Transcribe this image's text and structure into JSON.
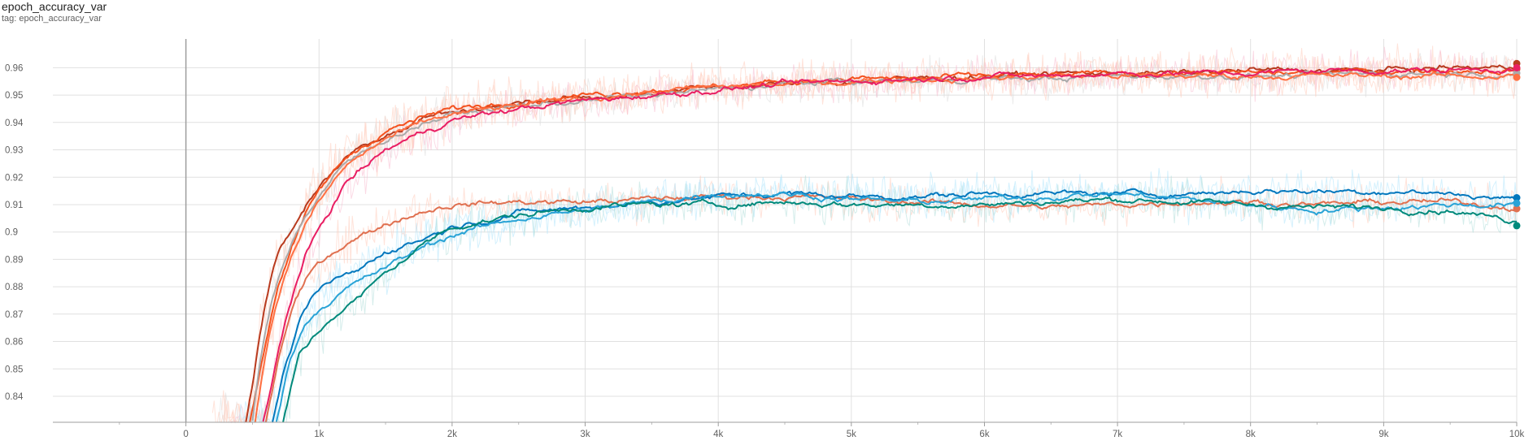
{
  "card": {
    "title": "epoch_accuracy_var",
    "tag": "tag: epoch_accuracy_var"
  },
  "chart_data": {
    "type": "line",
    "title": "epoch_accuracy_var",
    "xlabel": "",
    "ylabel": "",
    "x_range": [
      -1000,
      10000
    ],
    "y_range": [
      0.8305,
      0.9705
    ],
    "x_ticks": [
      {
        "value": 0,
        "label": "0"
      },
      {
        "value": 1000,
        "label": "1k"
      },
      {
        "value": 2000,
        "label": "2k"
      },
      {
        "value": 3000,
        "label": "3k"
      },
      {
        "value": 4000,
        "label": "4k"
      },
      {
        "value": 5000,
        "label": "5k"
      },
      {
        "value": 6000,
        "label": "6k"
      },
      {
        "value": 7000,
        "label": "7k"
      },
      {
        "value": 8000,
        "label": "8k"
      },
      {
        "value": 9000,
        "label": "9k"
      },
      {
        "value": 10000,
        "label": "10k"
      }
    ],
    "y_ticks": [
      {
        "value": 0.84,
        "label": "0.84"
      },
      {
        "value": 0.85,
        "label": "0.85"
      },
      {
        "value": 0.86,
        "label": "0.86"
      },
      {
        "value": 0.87,
        "label": "0.87"
      },
      {
        "value": 0.88,
        "label": "0.88"
      },
      {
        "value": 0.89,
        "label": "0.89"
      },
      {
        "value": 0.9,
        "label": "0.9"
      },
      {
        "value": 0.91,
        "label": "0.91"
      },
      {
        "value": 0.92,
        "label": "0.92"
      },
      {
        "value": 0.93,
        "label": "0.93"
      },
      {
        "value": 0.94,
        "label": "0.94"
      },
      {
        "value": 0.95,
        "label": "0.95"
      },
      {
        "value": 0.96,
        "label": "0.96"
      }
    ],
    "grid": true,
    "legend": "none",
    "smoothed_lines": true,
    "series": [
      {
        "color": "#b83a1e",
        "raw_color": "#ffccbc",
        "points": [
          [
            450,
            0.8305
          ],
          [
            500,
            0.845
          ],
          [
            550,
            0.862
          ],
          [
            600,
            0.875
          ],
          [
            650,
            0.885
          ],
          [
            700,
            0.893
          ],
          [
            800,
            0.901
          ],
          [
            900,
            0.909
          ],
          [
            1000,
            0.917
          ],
          [
            1200,
            0.928
          ],
          [
            1500,
            0.936
          ],
          [
            1800,
            0.942
          ],
          [
            2000,
            0.944
          ],
          [
            2500,
            0.947
          ],
          [
            3000,
            0.949
          ],
          [
            3500,
            0.951
          ],
          [
            4000,
            0.953
          ],
          [
            4500,
            0.954
          ],
          [
            5000,
            0.955
          ],
          [
            5500,
            0.956
          ],
          [
            6000,
            0.957
          ],
          [
            6500,
            0.958
          ],
          [
            7000,
            0.958
          ],
          [
            7500,
            0.958
          ],
          [
            8000,
            0.959
          ],
          [
            8500,
            0.959
          ],
          [
            9000,
            0.959
          ],
          [
            9500,
            0.96
          ],
          [
            10000,
            0.96
          ]
        ],
        "end_value": 0.9615
      },
      {
        "color": "#f4511e",
        "raw_color": "#ffccbc",
        "points": [
          [
            480,
            0.8305
          ],
          [
            550,
            0.848
          ],
          [
            600,
            0.86
          ],
          [
            650,
            0.872
          ],
          [
            700,
            0.882
          ],
          [
            800,
            0.895
          ],
          [
            900,
            0.906
          ],
          [
            1000,
            0.915
          ],
          [
            1200,
            0.927
          ],
          [
            1500,
            0.937
          ],
          [
            1800,
            0.942
          ],
          [
            2000,
            0.945
          ],
          [
            2500,
            0.948
          ],
          [
            3000,
            0.95
          ],
          [
            3500,
            0.952
          ],
          [
            4000,
            0.953
          ],
          [
            4500,
            0.955
          ],
          [
            5000,
            0.956
          ],
          [
            5500,
            0.956
          ],
          [
            6000,
            0.957
          ],
          [
            6500,
            0.957
          ],
          [
            7000,
            0.958
          ],
          [
            7500,
            0.958
          ],
          [
            8000,
            0.958
          ],
          [
            8500,
            0.958
          ],
          [
            9000,
            0.959
          ],
          [
            9500,
            0.959
          ],
          [
            10000,
            0.959
          ]
        ],
        "end_value": 0.9595
      },
      {
        "color": "#aaaaaa",
        "raw_color": "#dddddd",
        "points": [
          [
            500,
            0.8305
          ],
          [
            550,
            0.85
          ],
          [
            600,
            0.865
          ],
          [
            650,
            0.876
          ],
          [
            700,
            0.885
          ],
          [
            800,
            0.897
          ],
          [
            900,
            0.906
          ],
          [
            1000,
            0.913
          ],
          [
            1200,
            0.925
          ],
          [
            1500,
            0.934
          ],
          [
            1800,
            0.94
          ],
          [
            2000,
            0.943
          ],
          [
            2500,
            0.946
          ],
          [
            3000,
            0.948
          ],
          [
            3500,
            0.95
          ],
          [
            4000,
            0.952
          ],
          [
            4500,
            0.954
          ],
          [
            5000,
            0.955
          ],
          [
            5500,
            0.955
          ],
          [
            6000,
            0.956
          ],
          [
            6500,
            0.956
          ],
          [
            7000,
            0.957
          ],
          [
            7500,
            0.957
          ],
          [
            8000,
            0.957
          ],
          [
            8500,
            0.957
          ],
          [
            9000,
            0.958
          ],
          [
            9500,
            0.958
          ],
          [
            10000,
            0.958
          ]
        ],
        "end_value": 0.958
      },
      {
        "color": "#ff7043",
        "raw_color": "#ffccbc",
        "points": [
          [
            520,
            0.8305
          ],
          [
            600,
            0.856
          ],
          [
            650,
            0.868
          ],
          [
            700,
            0.878
          ],
          [
            800,
            0.892
          ],
          [
            900,
            0.903
          ],
          [
            1000,
            0.911
          ],
          [
            1200,
            0.924
          ],
          [
            1500,
            0.934
          ],
          [
            1800,
            0.94
          ],
          [
            2000,
            0.943
          ],
          [
            2500,
            0.946
          ],
          [
            3000,
            0.949
          ],
          [
            3500,
            0.951
          ],
          [
            4000,
            0.953
          ],
          [
            4500,
            0.954
          ],
          [
            5000,
            0.955
          ],
          [
            5500,
            0.956
          ],
          [
            6000,
            0.956
          ],
          [
            6500,
            0.957
          ],
          [
            7000,
            0.957
          ],
          [
            7500,
            0.957
          ],
          [
            8000,
            0.957
          ],
          [
            8500,
            0.957
          ],
          [
            9000,
            0.957
          ],
          [
            9500,
            0.957
          ],
          [
            10000,
            0.957
          ]
        ],
        "end_value": 0.9565
      },
      {
        "color": "#e91e63",
        "raw_color": "#f8bbd0",
        "points": [
          [
            580,
            0.8305
          ],
          [
            650,
            0.845
          ],
          [
            700,
            0.858
          ],
          [
            750,
            0.868
          ],
          [
            800,
            0.877
          ],
          [
            900,
            0.891
          ],
          [
            1000,
            0.901
          ],
          [
            1200,
            0.918
          ],
          [
            1500,
            0.93
          ],
          [
            1800,
            0.937
          ],
          [
            2000,
            0.941
          ],
          [
            2500,
            0.945
          ],
          [
            3000,
            0.948
          ],
          [
            3500,
            0.95
          ],
          [
            4000,
            0.952
          ],
          [
            4500,
            0.954
          ],
          [
            5000,
            0.955
          ],
          [
            5500,
            0.956
          ],
          [
            6000,
            0.957
          ],
          [
            6500,
            0.957
          ],
          [
            7000,
            0.958
          ],
          [
            7500,
            0.958
          ],
          [
            8000,
            0.958
          ],
          [
            8500,
            0.959
          ],
          [
            9000,
            0.959
          ],
          [
            9500,
            0.959
          ],
          [
            10000,
            0.96
          ]
        ],
        "end_value": 0.96
      },
      {
        "color": "#e07050",
        "raw_color": "#ffccbc",
        "points": [
          [
            600,
            0.8305
          ],
          [
            700,
            0.855
          ],
          [
            800,
            0.872
          ],
          [
            900,
            0.882
          ],
          [
            1000,
            0.889
          ],
          [
            1200,
            0.896
          ],
          [
            1500,
            0.903
          ],
          [
            1800,
            0.908
          ],
          [
            2000,
            0.91
          ],
          [
            2500,
            0.911
          ],
          [
            3000,
            0.911
          ],
          [
            3500,
            0.912
          ],
          [
            4000,
            0.913
          ],
          [
            4500,
            0.913
          ],
          [
            5000,
            0.912
          ],
          [
            5500,
            0.911
          ],
          [
            6000,
            0.91
          ],
          [
            6500,
            0.909
          ],
          [
            7000,
            0.91
          ],
          [
            7500,
            0.911
          ],
          [
            8000,
            0.911
          ],
          [
            8500,
            0.91
          ],
          [
            9000,
            0.911
          ],
          [
            9500,
            0.911
          ],
          [
            10000,
            0.909
          ]
        ],
        "end_value": 0.9085
      },
      {
        "color": "#0277bd",
        "raw_color": "#b3e5fc",
        "points": [
          [
            650,
            0.8305
          ],
          [
            750,
            0.852
          ],
          [
            850,
            0.866
          ],
          [
            950,
            0.876
          ],
          [
            1100,
            0.882
          ],
          [
            1300,
            0.886
          ],
          [
            1500,
            0.893
          ],
          [
            1800,
            0.898
          ],
          [
            2000,
            0.902
          ],
          [
            2500,
            0.907
          ],
          [
            3000,
            0.909
          ],
          [
            3500,
            0.911
          ],
          [
            4000,
            0.913
          ],
          [
            4500,
            0.914
          ],
          [
            5000,
            0.913
          ],
          [
            5500,
            0.913
          ],
          [
            6000,
            0.914
          ],
          [
            6500,
            0.914
          ],
          [
            7000,
            0.914
          ],
          [
            7500,
            0.914
          ],
          [
            8000,
            0.915
          ],
          [
            8500,
            0.915
          ],
          [
            9000,
            0.915
          ],
          [
            9500,
            0.914
          ],
          [
            10000,
            0.912
          ]
        ],
        "end_value": 0.9125
      },
      {
        "color": "#29a3d6",
        "raw_color": "#b3e5fc",
        "points": [
          [
            680,
            0.8305
          ],
          [
            780,
            0.853
          ],
          [
            900,
            0.867
          ],
          [
            1000,
            0.872
          ],
          [
            1200,
            0.879
          ],
          [
            1500,
            0.887
          ],
          [
            1800,
            0.895
          ],
          [
            2000,
            0.899
          ],
          [
            2500,
            0.905
          ],
          [
            3000,
            0.908
          ],
          [
            3500,
            0.911
          ],
          [
            4000,
            0.914
          ],
          [
            4500,
            0.914
          ],
          [
            5000,
            0.912
          ],
          [
            5500,
            0.911
          ],
          [
            6000,
            0.912
          ],
          [
            6500,
            0.913
          ],
          [
            7000,
            0.914
          ],
          [
            7500,
            0.912
          ],
          [
            8000,
            0.91
          ],
          [
            8500,
            0.908
          ],
          [
            9000,
            0.909
          ],
          [
            9500,
            0.91
          ],
          [
            10000,
            0.91
          ]
        ],
        "end_value": 0.9105
      },
      {
        "color": "#00897b",
        "raw_color": "#b2dfdb",
        "points": [
          [
            730,
            0.8305
          ],
          [
            850,
            0.855
          ],
          [
            950,
            0.861
          ],
          [
            1100,
            0.869
          ],
          [
            1300,
            0.876
          ],
          [
            1500,
            0.885
          ],
          [
            1800,
            0.896
          ],
          [
            2000,
            0.902
          ],
          [
            2500,
            0.906
          ],
          [
            3000,
            0.909
          ],
          [
            3500,
            0.91
          ],
          [
            4000,
            0.91
          ],
          [
            4500,
            0.911
          ],
          [
            5000,
            0.91
          ],
          [
            5500,
            0.91
          ],
          [
            6000,
            0.91
          ],
          [
            6500,
            0.911
          ],
          [
            7000,
            0.912
          ],
          [
            7500,
            0.911
          ],
          [
            8000,
            0.91
          ],
          [
            8500,
            0.909
          ],
          [
            9000,
            0.909
          ],
          [
            9500,
            0.908
          ],
          [
            10000,
            0.904
          ]
        ],
        "end_value": 0.9023
      }
    ]
  }
}
